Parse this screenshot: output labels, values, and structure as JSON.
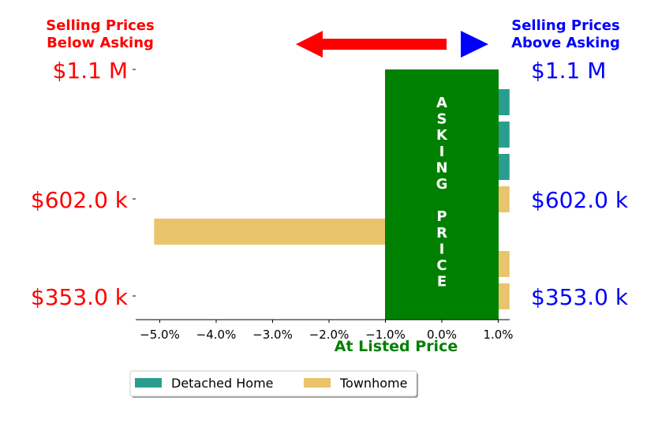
{
  "header": {
    "left": {
      "line1": "Selling Prices",
      "line2": "Below Asking",
      "color": "#ff0000"
    },
    "right": {
      "line1": "Selling Prices",
      "line2": "Above Asking",
      "color": "#0000ff"
    }
  },
  "price_labels": {
    "top": "$1.1 M",
    "mid": "$602.0 k",
    "bottom": "$353.0 k",
    "left_color": "#ff0000",
    "right_color": "#0000ff"
  },
  "asking_band": {
    "letters": [
      "A",
      "S",
      "K",
      "I",
      "N",
      "G",
      "",
      "P",
      "R",
      "I",
      "C",
      "E"
    ],
    "color": "#008000"
  },
  "xaxis": {
    "label": "At Listed Price",
    "label_color": "#008000",
    "ticks": [
      "−5.0%",
      "−4.0%",
      "−3.0%",
      "−2.0%",
      "−1.0%",
      "0.0%",
      "1.0%"
    ]
  },
  "legend": [
    {
      "name": "Detached Home",
      "color": "#2a9d8f"
    },
    {
      "name": "Townhome",
      "color": "#e9c46a"
    }
  ],
  "chart_data": {
    "type": "bar",
    "orientation": "horizontal",
    "xlabel": "At Listed Price",
    "xlim": [
      -5.4,
      1.0
    ],
    "asking_band": [
      -1.0,
      1.0
    ],
    "series": [
      {
        "name": "Detached Home",
        "color": "#2a9d8f",
        "bars": [
          {
            "row": 0,
            "value": 1.2
          },
          {
            "row": 1,
            "value": 1.2
          },
          {
            "row": 2,
            "value": 1.2
          }
        ]
      },
      {
        "name": "Townhome",
        "color": "#e9c46a",
        "bars": [
          {
            "row": 3,
            "value": 1.2
          },
          {
            "row": 4,
            "value": -5.1
          },
          {
            "row": 5,
            "value": 1.2
          },
          {
            "row": 6,
            "value": 1.2
          }
        ]
      }
    ]
  }
}
